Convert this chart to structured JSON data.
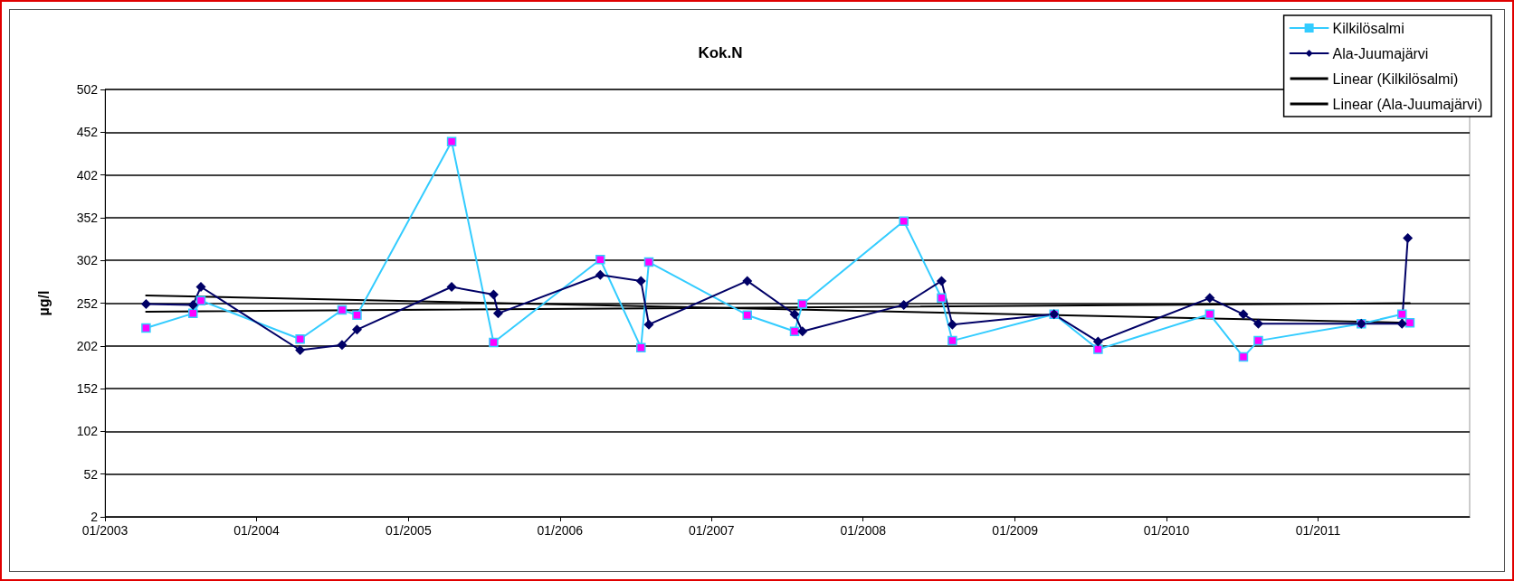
{
  "chart_data": {
    "type": "line",
    "title": "Kok.N",
    "ylabel": "µg/l",
    "xlim": [
      "2003-01-01",
      "2012-01-01"
    ],
    "xticks": [
      {
        "value": "2003-01-01",
        "label": "01/2003"
      },
      {
        "value": "2004-01-01",
        "label": "01/2004"
      },
      {
        "value": "2005-01-01",
        "label": "01/2005"
      },
      {
        "value": "2006-01-01",
        "label": "01/2006"
      },
      {
        "value": "2007-01-01",
        "label": "01/2007"
      },
      {
        "value": "2008-01-01",
        "label": "01/2008"
      },
      {
        "value": "2009-01-01",
        "label": "01/2009"
      },
      {
        "value": "2010-01-01",
        "label": "01/2010"
      },
      {
        "value": "2011-01-01",
        "label": "01/2011"
      }
    ],
    "ylim": [
      2,
      502
    ],
    "yticks": [
      2,
      52,
      102,
      152,
      202,
      252,
      302,
      352,
      402,
      452,
      502
    ],
    "grid": "y",
    "legend": "top right",
    "series": [
      {
        "name": "Kilkilösalmi",
        "color": "#33ccff",
        "marker": "square",
        "colors": [
          "#ff00ff",
          "#ff00ff",
          "#ff00ff",
          "#ff00ff",
          "#ff00ff",
          "#ff00ff",
          "#ff00ff",
          "#ff00ff",
          "#ff00ff",
          "#ff00ff",
          "#ff00ff",
          "#ff00ff",
          "#ff00ff",
          "#ff00ff",
          "#ff00ff",
          "#ff00ff",
          "#ff00ff",
          "#ff00ff",
          "#ff00ff",
          "#ff00ff",
          "#ff00ff",
          "#ff00ff",
          "#ff00ff",
          "#ff00ff",
          "#ff00ff"
        ],
        "x": [
          "2003-04-10",
          "2003-08-01",
          "2003-08-20",
          "2004-04-15",
          "2004-07-25",
          "2004-08-30",
          "2005-04-15",
          "2005-07-25",
          "2006-04-08",
          "2006-07-15",
          "2006-08-03",
          "2007-03-28",
          "2007-07-20",
          "2007-08-08",
          "2008-04-08",
          "2008-07-08",
          "2008-08-03",
          "2009-04-05",
          "2009-07-20",
          "2010-04-15",
          "2010-07-05",
          "2010-08-10",
          "2011-04-15",
          "2011-07-22",
          "2011-08-10"
        ],
        "values": [
          223,
          240,
          255,
          210,
          244,
          238,
          441,
          206,
          303,
          200,
          300,
          238,
          219,
          251,
          348,
          258,
          208,
          239,
          198,
          239,
          189,
          208,
          228,
          239,
          229
        ]
      },
      {
        "name": "Ala-Juumajärvi",
        "color": "#000066",
        "marker": "diamond",
        "x": [
          "2003-04-10",
          "2003-08-01",
          "2003-08-20",
          "2004-04-15",
          "2004-07-25",
          "2004-08-30",
          "2005-04-15",
          "2005-07-25",
          "2005-08-05",
          "2006-04-08",
          "2006-07-15",
          "2006-08-03",
          "2007-03-28",
          "2007-07-20",
          "2007-08-08",
          "2008-04-08",
          "2008-07-08",
          "2008-08-03",
          "2009-04-05",
          "2009-07-20",
          "2010-04-15",
          "2010-07-05",
          "2010-08-10",
          "2011-04-15",
          "2011-07-22",
          "2011-08-05"
        ],
        "values": [
          251,
          250,
          271,
          197,
          203,
          221,
          271,
          262,
          240,
          285,
          278,
          227,
          278,
          239,
          219,
          250,
          278,
          227,
          239,
          207,
          258,
          239,
          228,
          228,
          228,
          328
        ]
      },
      {
        "name": "Linear (Kilkilösalmi)",
        "color": "#000000",
        "marker": "none",
        "x": [
          "2003-04-10",
          "2011-08-10"
        ],
        "values": [
          242,
          252
        ]
      },
      {
        "name": "Linear (Ala-Juumajärvi)",
        "color": "#000000",
        "marker": "none",
        "x": [
          "2003-04-10",
          "2011-08-05"
        ],
        "values": [
          261,
          229
        ]
      }
    ]
  }
}
